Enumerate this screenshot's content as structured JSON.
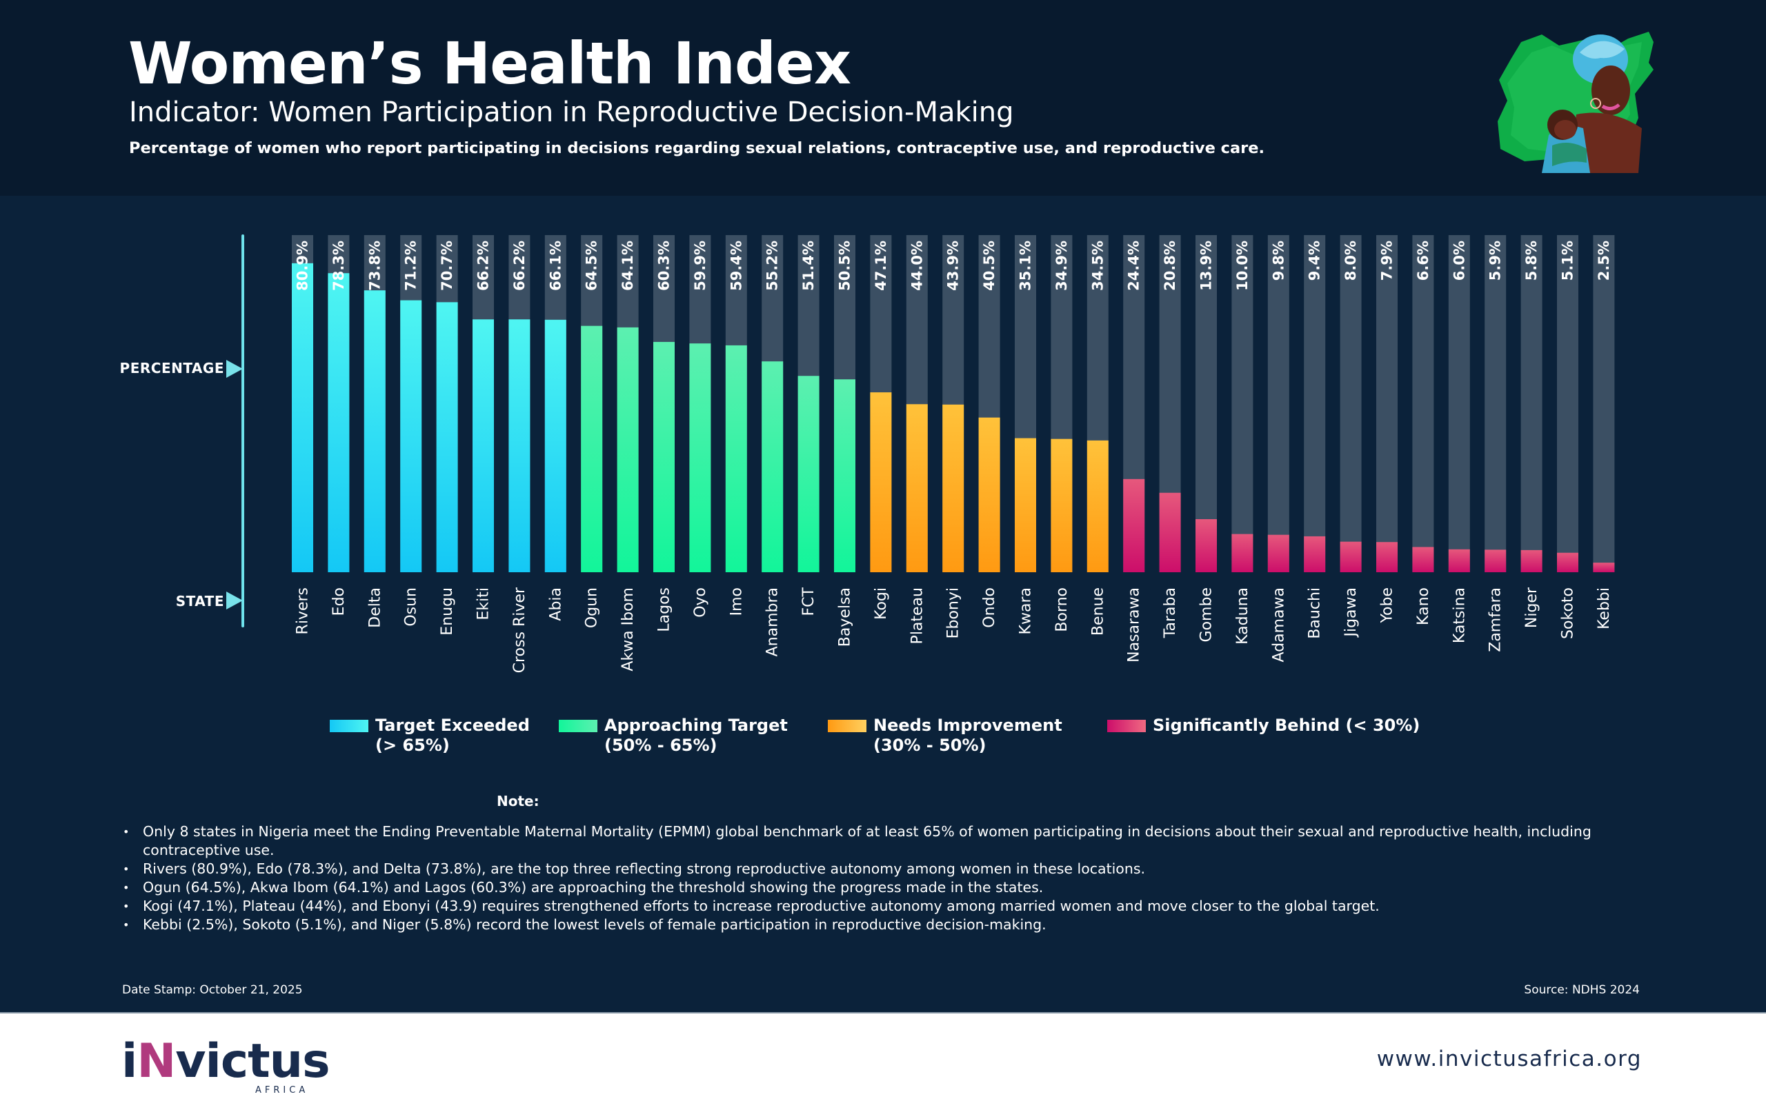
{
  "header": {
    "title": "Women’s Health Index",
    "indicator": "Indicator: Women Participation in Reproductive Decision-Making",
    "subtitle": "Percentage of women who report participating in decisions regarding sexual relations, contraceptive use, and reproductive care.",
    "illustration": "nigeria-map-mother-child-illustration"
  },
  "axes": {
    "y_label": "PERCENTAGE",
    "x_label": "STATE"
  },
  "colors": {
    "background": "#0b223a",
    "header_background": "#081a2e",
    "track": "#3b4f63",
    "axis": "#6fe3ec",
    "target_exceeded": [
      "#14c8f5",
      "#4ff5f2"
    ],
    "approaching_target": [
      "#12f59a",
      "#5cf0b0"
    ],
    "needs_improvement": [
      "#ff9a12",
      "#ffc23a"
    ],
    "significantly_behind": [
      "#cc0e6a",
      "#e6587c"
    ]
  },
  "chart_data": {
    "type": "bar",
    "title": "Women Participation in Reproductive Decision-Making",
    "xlabel": "STATE",
    "ylabel": "PERCENTAGE",
    "unit": "%",
    "ylim": [
      0,
      100
    ],
    "grid": false,
    "legend_position": "bottom",
    "categories": [
      "Rivers",
      "Edo",
      "Delta",
      "Osun",
      "Enugu",
      "Ekiti",
      "Cross River",
      "Abia",
      "Ogun",
      "Akwa Ibom",
      "Lagos",
      "Oyo",
      "Imo",
      "Anambra",
      "FCT",
      "Bayelsa",
      "Kogi",
      "Plateau",
      "Ebonyi",
      "Ondo",
      "Kwara",
      "Borno",
      "Benue",
      "Nasarawa",
      "Taraba",
      "Gombe",
      "Kaduna",
      "Adamawa",
      "Bauchi",
      "Jigawa",
      "Yobe",
      "Kano",
      "Katsina",
      "Zamfara",
      "Niger",
      "Sokoto",
      "Kebbi"
    ],
    "values": [
      80.9,
      78.3,
      73.8,
      71.2,
      70.7,
      66.2,
      66.2,
      66.1,
      64.5,
      64.1,
      60.3,
      59.9,
      59.4,
      55.2,
      51.4,
      50.5,
      47.1,
      44.0,
      43.9,
      40.5,
      35.1,
      34.9,
      34.5,
      24.4,
      20.8,
      13.9,
      10.0,
      9.8,
      9.4,
      8.0,
      7.9,
      6.6,
      6.0,
      5.9,
      5.8,
      5.1,
      2.5
    ],
    "value_labels": [
      "80.9%",
      "78.3%",
      "73.8%",
      "71.2%",
      "70.7%",
      "66.2%",
      "66.2%",
      "66.1%",
      "64.5%",
      "64.1%",
      "60.3%",
      "59.9%",
      "59.4%",
      "55.2%",
      "51.4%",
      "50.5%",
      "47.1%",
      "44.0%",
      "43.9%",
      "40.5%",
      "35.1%",
      "34.9%",
      "34.5%",
      "24.4%",
      "20.8%",
      "13.9%",
      "10.0%",
      "9.8%",
      "9.4%",
      "8.0%",
      "7.9%",
      "6.6%",
      "6.0%",
      "5.9%",
      "5.8%",
      "5.1%",
      "2.5%"
    ],
    "categories_by_band": [
      "target_exceeded",
      "target_exceeded",
      "target_exceeded",
      "target_exceeded",
      "target_exceeded",
      "target_exceeded",
      "target_exceeded",
      "target_exceeded",
      "approaching_target",
      "approaching_target",
      "approaching_target",
      "approaching_target",
      "approaching_target",
      "approaching_target",
      "approaching_target",
      "approaching_target",
      "needs_improvement",
      "needs_improvement",
      "needs_improvement",
      "needs_improvement",
      "needs_improvement",
      "needs_improvement",
      "needs_improvement",
      "significantly_behind",
      "significantly_behind",
      "significantly_behind",
      "significantly_behind",
      "significantly_behind",
      "significantly_behind",
      "significantly_behind",
      "significantly_behind",
      "significantly_behind",
      "significantly_behind",
      "significantly_behind",
      "significantly_behind",
      "significantly_behind",
      "significantly_behind"
    ],
    "legend": [
      {
        "key": "target_exceeded",
        "label": "Target Exceeded",
        "range": "(> 65%)"
      },
      {
        "key": "approaching_target",
        "label": "Approaching Target",
        "range": "(50% - 65%)"
      },
      {
        "key": "needs_improvement",
        "label": "Needs Improvement",
        "range": "(30% - 50%)"
      },
      {
        "key": "significantly_behind",
        "label": "Significantly Behind (< 30%)",
        "range": ""
      }
    ]
  },
  "notes": {
    "title": "Note:",
    "items": [
      "Only 8 states in Nigeria meet the Ending Preventable Maternal Mortality (EPMM) global benchmark of at least 65% of women participating in decisions about their sexual and reproductive health, including contraceptive use.",
      "Rivers (80.9%), Edo (78.3%), and Delta (73.8%), are the top three reflecting strong reproductive autonomy among women in these locations.",
      "Ogun (64.5%), Akwa Ibom (64.1%) and Lagos (60.3%) are approaching the threshold showing the progress made in the states.",
      "Kogi (47.1%), Plateau (44%), and Ebonyi (43.9) requires strengthened efforts to increase reproductive autonomy among married women and move closer to the global target.",
      "Kebbi (2.5%), Sokoto (5.1%), and Niger (5.8%) record the lowest levels of female participation in reproductive decision-making."
    ]
  },
  "meta": {
    "date_stamp": "Date Stamp: October 21, 2025",
    "source": "Source: NDHS 2024"
  },
  "footer": {
    "logo_prefix": "i",
    "logo_accent": "N",
    "logo_rest": "victus",
    "logo_sub": "AFRICA",
    "website": "www.invictusafrica.org"
  }
}
